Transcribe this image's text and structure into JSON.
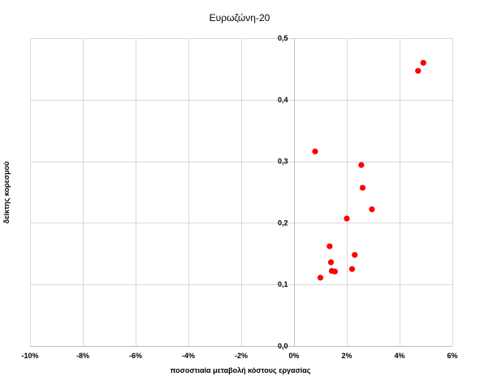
{
  "chart_data": {
    "type": "scatter",
    "title": "Ευρωζώνη-20",
    "xlabel": "ποσοστιαία μεταβολή κόστους εργασίας",
    "ylabel": "δείκτης κορεσμού",
    "xlim": [
      -0.1,
      0.06
    ],
    "ylim": [
      0,
      0.5
    ],
    "x_ticks": [
      -0.1,
      -0.08,
      -0.06,
      -0.04,
      -0.02,
      0,
      0.02,
      0.04,
      0.06
    ],
    "x_tick_labels": [
      "-10%",
      "-8%",
      "-6%",
      "-4%",
      "-2%",
      "0%",
      "2%",
      "4%",
      "6%"
    ],
    "y_ticks": [
      0,
      0.1,
      0.2,
      0.3,
      0.4,
      0.5
    ],
    "y_tick_labels": [
      "0,0",
      "0,1",
      "0,2",
      "0,3",
      "0,4",
      "0,5"
    ],
    "grid": true,
    "marker_color": "#ff0000",
    "points": [
      {
        "x": 0.008,
        "y": 0.316
      },
      {
        "x": 0.01,
        "y": 0.111
      },
      {
        "x": 0.0135,
        "y": 0.162
      },
      {
        "x": 0.014,
        "y": 0.136
      },
      {
        "x": 0.0143,
        "y": 0.122
      },
      {
        "x": 0.0155,
        "y": 0.121
      },
      {
        "x": 0.02,
        "y": 0.207
      },
      {
        "x": 0.022,
        "y": 0.125
      },
      {
        "x": 0.023,
        "y": 0.148
      },
      {
        "x": 0.0255,
        "y": 0.294
      },
      {
        "x": 0.026,
        "y": 0.257
      },
      {
        "x": 0.0295,
        "y": 0.222
      },
      {
        "x": 0.047,
        "y": 0.447
      },
      {
        "x": 0.049,
        "y": 0.46
      }
    ]
  }
}
